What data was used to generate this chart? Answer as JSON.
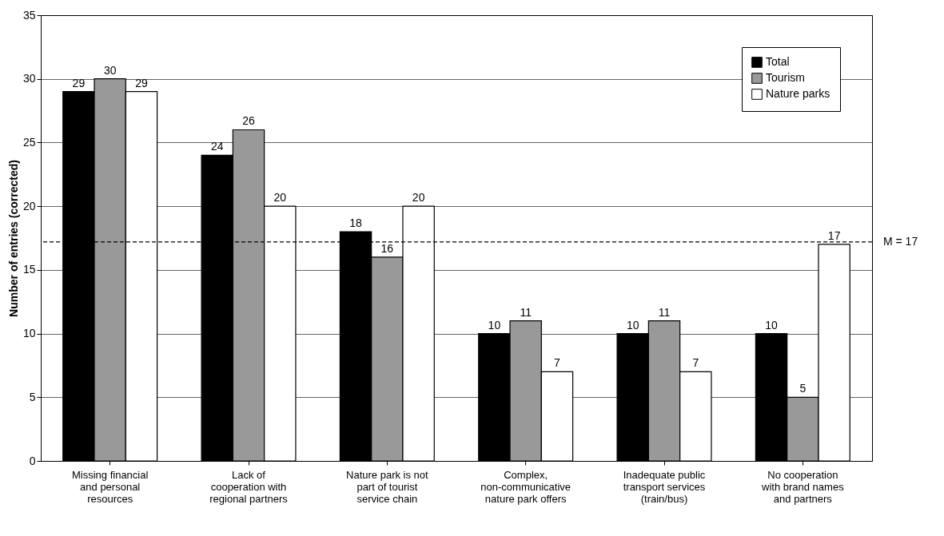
{
  "chart_data": {
    "type": "bar",
    "ylabel": "Number of entries (corrected)",
    "categories": [
      "Missing financial and personal resources",
      "Lack of cooperation with regional partners",
      "Nature park is not part of tourist service chain",
      "Complex, non-communicative nature park offers",
      "Inadequate public transport services (train/bus)",
      "No cooperation with brand names and partners"
    ],
    "series": [
      {
        "name": "Total",
        "color": "#000000",
        "values": [
          29,
          24,
          18,
          10,
          10,
          10
        ]
      },
      {
        "name": "Tourism",
        "color": "#999999",
        "values": [
          30,
          26,
          16,
          11,
          11,
          5
        ]
      },
      {
        "name": "Nature parks",
        "color": "#ffffff",
        "values": [
          29,
          20,
          20,
          7,
          7,
          17
        ]
      }
    ],
    "ylim": [
      0,
      35
    ],
    "yticks": [
      0,
      5,
      10,
      15,
      20,
      25,
      30,
      35
    ],
    "grid": "y",
    "legend": "top right",
    "data_labels": true,
    "ref_lines": [
      {
        "axis": "y",
        "value": 17.2,
        "label": "M = 17",
        "line_style": "dashed",
        "color": "#000000"
      }
    ]
  }
}
